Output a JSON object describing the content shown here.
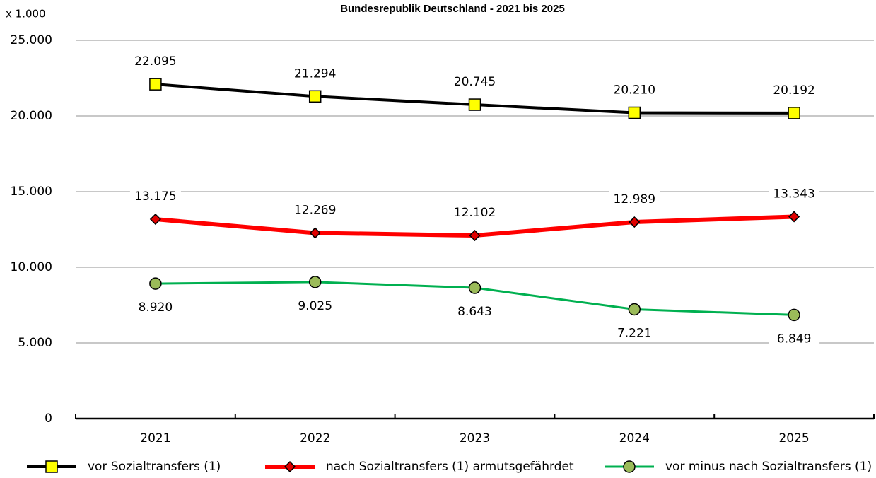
{
  "chart_data": {
    "type": "line",
    "title": "Bundesrepublik Deutschland - 2021 bis 2025",
    "y_unit": "x 1.000",
    "categories": [
      "2021",
      "2022",
      "2023",
      "2024",
      "2025"
    ],
    "series": [
      {
        "name": "vor Sozialtransfers (1)",
        "color": "#000000",
        "marker": "square",
        "marker_color": "#ffff00",
        "label_position": "above",
        "values": [
          22095,
          21294,
          20745,
          20210,
          20192
        ],
        "value_labels": [
          "22.095",
          "21.294",
          "20.745",
          "20.210",
          "20.192"
        ]
      },
      {
        "name": "nach Sozialtransfers (1) armutsgefährdet",
        "color": "#ff0000",
        "marker": "diamond",
        "marker_color": "#e00000",
        "label_position": "above",
        "values": [
          13175,
          12269,
          12102,
          12989,
          13343
        ],
        "value_labels": [
          "13.175",
          "12.269",
          "12.102",
          "12.989",
          "13.343"
        ]
      },
      {
        "name": "vor minus nach Sozialtransfers (1)",
        "color": "#00b050",
        "marker": "circle",
        "marker_color": "#9bbb59",
        "label_position": "below",
        "values": [
          8920,
          9025,
          8643,
          7221,
          6849
        ],
        "value_labels": [
          "8.920",
          "9.025",
          "8.643",
          "7.221",
          "6.849"
        ]
      }
    ],
    "ylim": [
      0,
      25000
    ],
    "yticks": [
      0,
      {
        "value": 5000,
        "label": "5.000"
      },
      {
        "value": 10000,
        "label": "10.000"
      },
      {
        "value": 15000,
        "label": "15.000"
      },
      {
        "value": 20000,
        "label": "20.000"
      },
      {
        "value": 25000,
        "label": "25.000"
      }
    ],
    "grid": true
  }
}
